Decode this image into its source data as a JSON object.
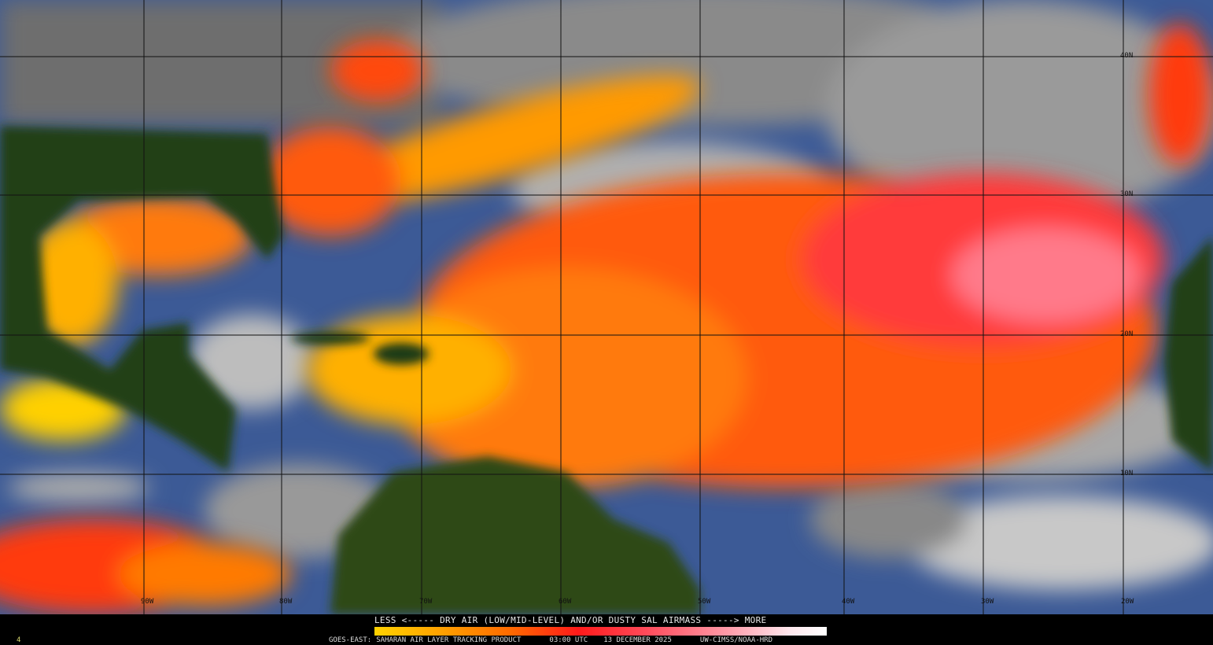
{
  "product": {
    "legend_title": "LESS <----- DRY AIR (LOW/MID-LEVEL) AND/OR DUSTY SAL AIRMASS -----> MORE",
    "satellite": "GOES-EAST:",
    "product_name": "SAHARAN AIR LAYER TRACKING PRODUCT",
    "time": "03:00 UTC",
    "date": "13 DECEMBER 2025",
    "credit": "UW-CIMSS/NOAA-HRD",
    "frame_number": "4"
  },
  "colorbar": {
    "low_label": "LESS",
    "high_label": "MORE",
    "colors": [
      "#ffd200",
      "#ffa000",
      "#ff6a00",
      "#ff1a1a",
      "#ff4a5a",
      "#ff9aa8",
      "#ffe8ee",
      "#ffffff"
    ]
  },
  "grid": {
    "longitudes": [
      "90W",
      "80W",
      "70W",
      "60W",
      "50W",
      "40W",
      "30W",
      "20W"
    ],
    "latitudes": [
      "40N",
      "30N",
      "20N",
      "10N"
    ]
  },
  "colors": {
    "land": "#1f3a12",
    "ocean_moist": "#3a5a9a",
    "cloud": "#9a9a9a",
    "sal_dry": "#ff4a1a"
  }
}
